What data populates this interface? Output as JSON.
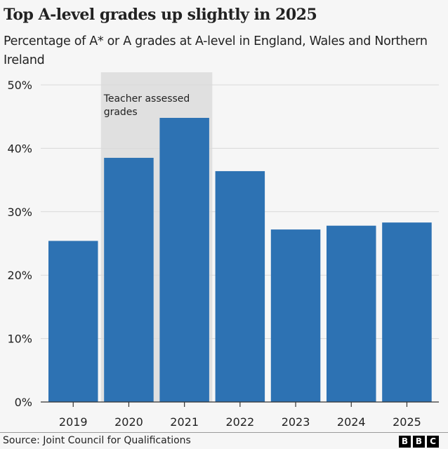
{
  "chart_data": {
    "type": "bar",
    "title": "Top A-level grades up slightly in 2025",
    "subtitle": "Percentage of A* or A grades at A-level in England, Wales and Northern Ireland",
    "categories": [
      "2019",
      "2020",
      "2021",
      "2022",
      "2023",
      "2024",
      "2025"
    ],
    "values": [
      25.4,
      38.5,
      44.8,
      36.4,
      27.2,
      27.8,
      28.3
    ],
    "ylim": [
      0,
      50
    ],
    "yticks": [
      0,
      10,
      20,
      30,
      40,
      50
    ],
    "ytick_labels": [
      "0%",
      "10%",
      "20%",
      "30%",
      "40%",
      "50%"
    ],
    "xlabel": "",
    "ylabel": "",
    "grid": true,
    "bar_color": "#2d72b3",
    "annotation": {
      "label_line1": "Teacher assessed",
      "label_line2": "grades",
      "from": "2020",
      "to": "2021",
      "color": "#e0e0e0"
    }
  },
  "footer": {
    "source": "Source: Joint Council for Qualifications",
    "logo": [
      "B",
      "B",
      "C"
    ]
  }
}
